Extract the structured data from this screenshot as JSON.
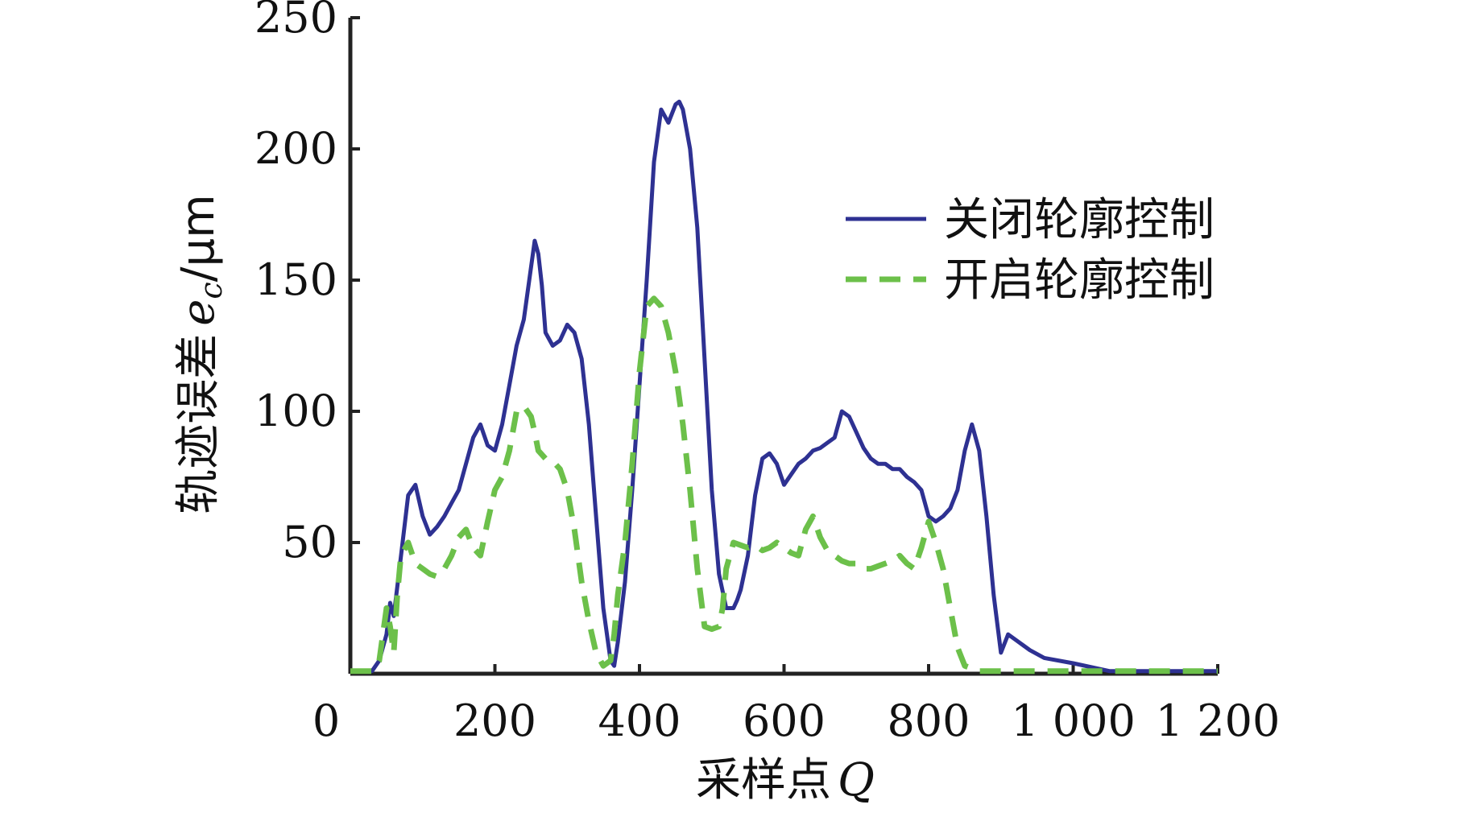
{
  "chart_data": {
    "type": "line",
    "title": "",
    "xlabel": "采样点",
    "xlabel_var": "Q",
    "ylabel": "轨迹误差",
    "ylabel_var": "e",
    "ylabel_sub": "c",
    "ylabel_unit": "/μm",
    "xlim": [
      0,
      1200
    ],
    "ylim": [
      0,
      250
    ],
    "xticks": [
      0,
      200,
      400,
      600,
      800,
      1000,
      1200
    ],
    "xtick_labels": [
      "0",
      "200",
      "400",
      "600",
      "800",
      "1 000",
      "1 200"
    ],
    "yticks": [
      50,
      100,
      150,
      200,
      250
    ],
    "ytick_labels": [
      "50",
      "100",
      "150",
      "200",
      "250"
    ],
    "grid": false,
    "legend_position": "top-right",
    "series": [
      {
        "name": "关闭轮廓控制",
        "color": "#2e3192",
        "style": "solid",
        "x": [
          0,
          30,
          40,
          50,
          55,
          60,
          68,
          80,
          90,
          100,
          110,
          120,
          130,
          140,
          150,
          160,
          170,
          180,
          190,
          200,
          210,
          220,
          230,
          240,
          250,
          255,
          260,
          265,
          270,
          280,
          290,
          300,
          310,
          320,
          330,
          340,
          350,
          360,
          365,
          370,
          380,
          390,
          400,
          410,
          420,
          430,
          440,
          450,
          455,
          460,
          470,
          480,
          490,
          500,
          510,
          520,
          530,
          535,
          540,
          550,
          560,
          570,
          580,
          590,
          600,
          610,
          620,
          630,
          640,
          650,
          660,
          670,
          680,
          690,
          700,
          710,
          720,
          730,
          740,
          750,
          760,
          770,
          780,
          790,
          800,
          810,
          820,
          830,
          840,
          850,
          860,
          870,
          880,
          890,
          900,
          910,
          920,
          940,
          960,
          1000,
          1050,
          1100,
          1200
        ],
        "y": [
          1,
          1,
          5,
          15,
          27,
          22,
          40,
          68,
          72,
          60,
          53,
          56,
          60,
          65,
          70,
          80,
          90,
          95,
          87,
          85,
          95,
          110,
          125,
          135,
          155,
          165,
          160,
          148,
          130,
          125,
          127,
          133,
          130,
          120,
          95,
          60,
          25,
          5,
          3,
          12,
          35,
          70,
          110,
          150,
          195,
          215,
          210,
          217,
          218,
          215,
          200,
          170,
          120,
          70,
          38,
          25,
          25,
          28,
          32,
          45,
          68,
          82,
          84,
          80,
          72,
          76,
          80,
          82,
          85,
          86,
          88,
          90,
          100,
          98,
          92,
          86,
          82,
          80,
          80,
          78,
          78,
          75,
          73,
          70,
          60,
          58,
          60,
          63,
          70,
          85,
          95,
          85,
          60,
          30,
          8,
          15,
          13,
          9,
          6,
          4,
          1,
          1,
          1
        ]
      },
      {
        "name": "开启轮廓控制",
        "color": "#6cc04a",
        "style": "dashed",
        "x": [
          0,
          30,
          40,
          50,
          55,
          60,
          65,
          70,
          80,
          90,
          100,
          110,
          120,
          130,
          140,
          150,
          160,
          170,
          180,
          190,
          200,
          210,
          220,
          230,
          240,
          250,
          255,
          260,
          270,
          280,
          290,
          300,
          310,
          320,
          330,
          340,
          350,
          360,
          365,
          370,
          380,
          390,
          400,
          410,
          420,
          430,
          440,
          450,
          460,
          470,
          480,
          490,
          500,
          510,
          515,
          520,
          530,
          540,
          550,
          560,
          570,
          580,
          590,
          600,
          610,
          620,
          630,
          640,
          650,
          660,
          670,
          680,
          690,
          700,
          710,
          720,
          730,
          740,
          750,
          760,
          770,
          780,
          790,
          800,
          810,
          820,
          830,
          840,
          850,
          860,
          870,
          880,
          890,
          900,
          920,
          960,
          1000,
          1050,
          1100,
          1200
        ],
        "y": [
          1,
          1,
          5,
          25,
          18,
          8,
          30,
          45,
          50,
          42,
          40,
          38,
          37,
          40,
          45,
          52,
          55,
          48,
          45,
          58,
          70,
          75,
          85,
          100,
          102,
          98,
          92,
          85,
          82,
          81,
          78,
          70,
          55,
          35,
          20,
          8,
          3,
          5,
          15,
          30,
          50,
          80,
          115,
          140,
          143,
          140,
          130,
          115,
          95,
          70,
          40,
          18,
          17,
          18,
          25,
          40,
          50,
          49,
          48,
          49,
          47,
          48,
          50,
          48,
          46,
          45,
          55,
          60,
          52,
          47,
          45,
          43,
          42,
          42,
          40,
          40,
          41,
          42,
          43,
          45,
          42,
          40,
          48,
          58,
          50,
          40,
          25,
          10,
          3,
          2,
          1,
          1,
          1,
          1,
          1,
          1,
          1,
          1,
          1,
          1
        ]
      }
    ]
  }
}
